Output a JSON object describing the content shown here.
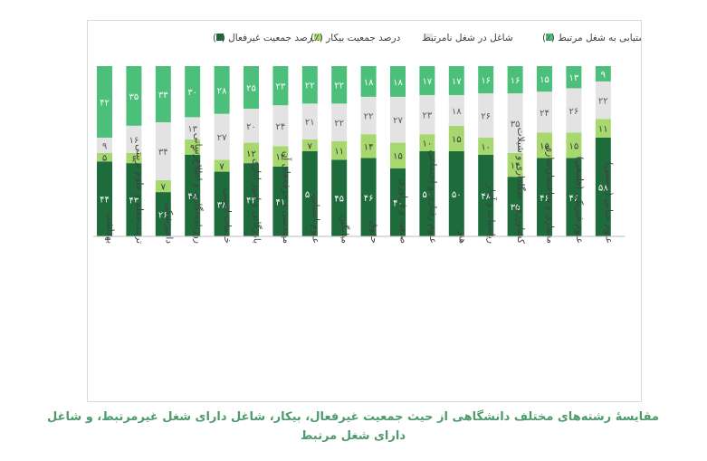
{
  "chart_data": {
    "type": "stacked-bar",
    "unit": "(٪)",
    "legend": [
      {
        "key": "lfp",
        "label": "درصد جمعیت غیرفعال (٪)",
        "color": "#1e6b3c"
      },
      {
        "key": "unemp",
        "label": "درصد جمعیت بیکار (٪)",
        "color": "#a6d86f"
      },
      {
        "key": "unrelated",
        "label": "شاغل در شغل نامرتبط",
        "color": "#e3e3e3"
      },
      {
        "key": "related",
        "label": "میزان دستیابی به شغل مرتبط (٪)",
        "color": "#4cc07a"
      }
    ],
    "categories": [
      "بهداشت",
      "تربیت‌معلم و علوم تربیتی",
      "دامپزشکی",
      "روزنامه‌نگاری و اطلاع‌رسانی",
      "خدمات امنیتی",
      "بازرگانی و امور اداری",
      "مهندسی و حرفه‌های آن",
      "علوم انسانی",
      "میانگین",
      "حقوق",
      "صنعت و فراوری",
      "علوم رفتاری و اجتماعی",
      "هنر",
      "ریاضیات و آمار",
      "کشاورزی، جنگلداری و شیلات",
      "معماری و ساختمان‌سازی",
      "علوم فیزیکی (طبیعی)",
      "علوم حیاتی (زیستی)"
    ],
    "series": [
      {
        "name": "lfp",
        "values": [
          44,
          43,
          26,
          48,
          38,
          43,
          41,
          50,
          45,
          46,
          40,
          50,
          50,
          48,
          35,
          46,
          46,
          58
        ]
      },
      {
        "name": "unemp",
        "values": [
          5,
          6,
          7,
          9,
          7,
          12,
          12,
          7,
          11,
          14,
          15,
          10,
          15,
          10,
          14,
          15,
          15,
          11
        ]
      },
      {
        "name": "unrelated",
        "values": [
          9,
          16,
          34,
          13,
          27,
          20,
          24,
          21,
          22,
          22,
          27,
          23,
          18,
          26,
          35,
          24,
          26,
          22
        ]
      },
      {
        "name": "related",
        "values": [
          42,
          35,
          33,
          30,
          28,
          25,
          23,
          22,
          22,
          18,
          18,
          17,
          17,
          16,
          16,
          15,
          13,
          9
        ]
      }
    ],
    "ylim": [
      0,
      100
    ]
  },
  "caption": "مقایسهٔ رشته‌های مختلف دانشگاهی از حیث جمعیت غیرفعال، بیکار، شاغل دارای شغل غیرمرتبط، و شاغل دارای شغل مرتبط"
}
